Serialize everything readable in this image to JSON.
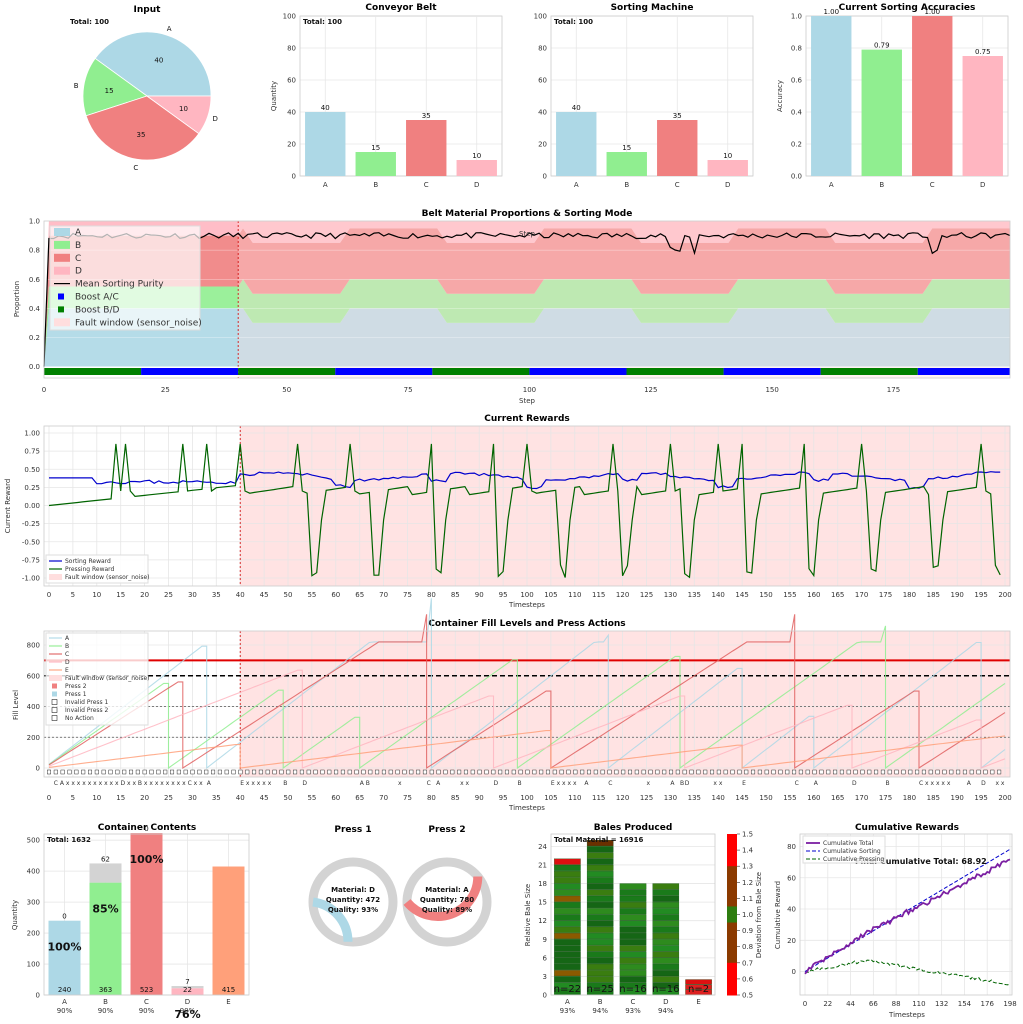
{
  "colors": {
    "A": "#add8e6",
    "B": "#90ee90",
    "C": "#f08080",
    "D": "#ffb6c1",
    "E": "#ffa07a",
    "fault": "#ffdede",
    "purity": "#000000",
    "boostAC": "#0000ff",
    "boostBD": "#008000",
    "sortReward": "#0000cd",
    "pressReward": "#006400",
    "limitRed": "#e00000"
  },
  "panels": {
    "input": {
      "title": "Input",
      "total": "Total: 100"
    },
    "conveyor": {
      "title": "Conveyor Belt",
      "total": "Total: 100",
      "ylabel": "Quantity"
    },
    "sorting": {
      "title": "Sorting Machine",
      "total": "Total: 100"
    },
    "accuracy": {
      "title": "Current Sorting Accuracies",
      "ylabel": "Accuracy"
    },
    "belt": {
      "title": "Belt Material Proportions & Sorting Mode",
      "ylabel": "Proportion",
      "xlabel": "Step",
      "top_xlabel": "Step"
    },
    "rewards": {
      "title": "Current Rewards",
      "ylabel": "Current Reward",
      "xlabel": "Timesteps"
    },
    "fill": {
      "title": "Container Fill Levels and Press Actions",
      "ylabel": "Fill Level",
      "xlabel": "Timesteps"
    },
    "contents": {
      "title": "Container Contents",
      "total": "Total: 1632",
      "ylabel": "Quantity"
    },
    "press": {
      "press1_title": "Press 1",
      "press2_title": "Press 2"
    },
    "bales": {
      "title": "Bales Produced",
      "total": "Total Material = 16916",
      "ylabel": "Relative Bale Size",
      "cbar_label": "Deviation from Bale Size"
    },
    "cumulative": {
      "title": "Cumulative Rewards",
      "xlabel": "Timesteps",
      "ylabel": "Cumulative Reward",
      "overlay": "Final Cumulative Total: 68.92"
    }
  },
  "chart_data": [
    {
      "id": "input",
      "type": "pie",
      "title": "Input",
      "labels": [
        "A",
        "B",
        "C",
        "D"
      ],
      "values": [
        40,
        15,
        35,
        10
      ]
    },
    {
      "id": "conveyor",
      "type": "bar",
      "title": "Conveyor Belt",
      "categories": [
        "A",
        "B",
        "C",
        "D"
      ],
      "values": [
        40,
        15,
        35,
        10
      ],
      "ylim": [
        0,
        100
      ],
      "yticks": [
        0,
        20,
        40,
        60,
        80,
        100
      ],
      "ylabel": "Quantity"
    },
    {
      "id": "sorting",
      "type": "bar",
      "title": "Sorting Machine",
      "categories": [
        "A",
        "B",
        "C",
        "D"
      ],
      "values": [
        40,
        15,
        35,
        10
      ],
      "ylim": [
        0,
        100
      ],
      "yticks": [
        0,
        20,
        40,
        60,
        80,
        100
      ]
    },
    {
      "id": "accuracy",
      "type": "bar",
      "title": "Current Sorting Accuracies",
      "categories": [
        "A",
        "B",
        "C",
        "D"
      ],
      "values": [
        1.0,
        0.79,
        1.0,
        0.75
      ],
      "value_labels": [
        "1.00",
        "0.79",
        "1.00",
        "0.75"
      ],
      "ylim": [
        0,
        1.0
      ],
      "yticks": [
        "0.0",
        "0.2",
        "0.4",
        "0.6",
        "0.8",
        "1.0"
      ],
      "ylabel": "Accuracy"
    },
    {
      "id": "belt",
      "type": "area",
      "title": "Belt Material Proportions & Sorting Mode",
      "xlim": [
        0,
        199
      ],
      "xticks": [
        0,
        25,
        50,
        75,
        100,
        125,
        150,
        175
      ],
      "yticks": [
        "0.0",
        "0.2",
        "0.4",
        "0.6",
        "0.8",
        "1.0"
      ],
      "legend": [
        "A",
        "B",
        "C",
        "D",
        "Mean Sorting Purity",
        "Boost A/C",
        "Boost B/D",
        "Fault window (sensor_noise)"
      ],
      "fault_start": 40,
      "phases": [
        {
          "from": 1,
          "to": 40,
          "A": 0.4,
          "B": 0.15,
          "C": 0.35,
          "D": 0.1
        },
        {
          "from": 41,
          "to": 199,
          "cycle": "alternating",
          "lowA": 0.3,
          "highA": 0.4,
          "period": 20
        }
      ],
      "purity_mean": 0.9,
      "mode_segments": [
        {
          "from": 0,
          "to": 20,
          "mode": "B/D"
        },
        {
          "from": 20,
          "to": 40,
          "mode": "A/C"
        },
        {
          "from": 40,
          "to": 60,
          "mode": "B/D"
        },
        {
          "from": 60,
          "to": 80,
          "mode": "A/C"
        },
        {
          "from": 80,
          "to": 100,
          "mode": "B/D"
        },
        {
          "from": 100,
          "to": 120,
          "mode": "A/C"
        },
        {
          "from": 120,
          "to": 140,
          "mode": "B/D"
        },
        {
          "from": 140,
          "to": 160,
          "mode": "A/C"
        },
        {
          "from": 160,
          "to": 180,
          "mode": "B/D"
        },
        {
          "from": 180,
          "to": 199,
          "mode": "A/C"
        }
      ]
    },
    {
      "id": "rewards",
      "type": "line",
      "title": "Current Rewards",
      "xlim": [
        0,
        200
      ],
      "ylim": [
        -1.1,
        1.1
      ],
      "xticks": [
        0,
        5,
        10,
        15,
        20,
        25,
        30,
        35,
        40,
        45,
        50,
        55,
        60,
        65,
        70,
        75,
        80,
        85,
        90,
        95,
        100,
        105,
        110,
        115,
        120,
        125,
        130,
        135,
        140,
        145,
        150,
        155,
        160,
        165,
        170,
        175,
        180,
        185,
        190,
        195,
        200
      ],
      "yticks": [
        "1.00",
        "0.75",
        "0.50",
        "0.25",
        "0.00",
        "-0.25",
        "-0.50",
        "-0.75",
        "-1.00"
      ],
      "series": [
        {
          "name": "Sorting Reward"
        },
        {
          "name": "Pressing Reward"
        }
      ],
      "fault_label": "Fault window (sensor_noise)",
      "fault_start": 40,
      "press_spikes": [
        14,
        16,
        28,
        33,
        40,
        52,
        63,
        80,
        93,
        100,
        118,
        130,
        140,
        145,
        158,
        170,
        185,
        195
      ]
    },
    {
      "id": "fill",
      "type": "line",
      "title": "Container Fill Levels and Press Actions",
      "xlim": [
        0,
        200
      ],
      "ylim": [
        0,
        850
      ],
      "yticks": [
        0,
        200,
        400,
        600,
        800
      ],
      "limit_red": 700,
      "limit_black": 600,
      "legend": [
        "A",
        "B",
        "C",
        "D",
        "E",
        "Fault window (sensor_noise)",
        "Press 2",
        "Press 1",
        "Invalid Press 1",
        "Invalid Press 2",
        "No Action"
      ],
      "action_labels": [
        {
          "x": 1,
          "t": "C A x x x x x x x x x x D x x B x x x x x x x x C x x"
        },
        {
          "x": 33,
          "t": "A"
        },
        {
          "x": 40,
          "t": "E x x x x x"
        },
        {
          "x": 49,
          "t": "B"
        },
        {
          "x": 53,
          "t": "D"
        },
        {
          "x": 65,
          "t": "A B"
        },
        {
          "x": 73,
          "t": "x"
        },
        {
          "x": 79,
          "t": "C"
        },
        {
          "x": 81,
          "t": "A"
        },
        {
          "x": 86,
          "t": "x x"
        },
        {
          "x": 93,
          "t": "D"
        },
        {
          "x": 98,
          "t": "B"
        },
        {
          "x": 105,
          "t": "E x x x x"
        },
        {
          "x": 112,
          "t": "A"
        },
        {
          "x": 117,
          "t": "C"
        },
        {
          "x": 125,
          "t": "x"
        },
        {
          "x": 130,
          "t": "A"
        },
        {
          "x": 132,
          "t": "B"
        },
        {
          "x": 133,
          "t": "D"
        },
        {
          "x": 139,
          "t": "x x"
        },
        {
          "x": 145,
          "t": "E"
        },
        {
          "x": 156,
          "t": "C"
        },
        {
          "x": 160,
          "t": "A"
        },
        {
          "x": 168,
          "t": "D"
        },
        {
          "x": 175,
          "t": "B"
        },
        {
          "x": 182,
          "t": "C x x x x x"
        },
        {
          "x": 192,
          "t": "A"
        },
        {
          "x": 195,
          "t": "D"
        },
        {
          "x": 198,
          "t": "x x"
        }
      ]
    },
    {
      "id": "contents",
      "type": "bar",
      "title": "Container Contents",
      "categories": [
        "A",
        "B",
        "C",
        "D",
        "E"
      ],
      "sub_labels": [
        "90%",
        "90%",
        "90%",
        "90%",
        ""
      ],
      "values": [
        240,
        363,
        523,
        22,
        415
      ],
      "impurities": [
        0,
        62,
        0,
        7,
        0
      ],
      "pct_labels": [
        "100%",
        "85%",
        "100%",
        "76%",
        ""
      ],
      "ylim": [
        0,
        520
      ],
      "yticks": [
        0,
        100,
        200,
        300,
        400,
        500
      ],
      "ylabel": "Quantity"
    },
    {
      "id": "press",
      "type": "pie",
      "panels": [
        {
          "title": "Press 1",
          "material": "Material: D",
          "quantity": "Quantity: 472",
          "quality": "Quality: 93%",
          "fill": 0.23
        },
        {
          "title": "Press 2",
          "material": "Material: A",
          "quantity": "Quantity: 780",
          "quality": "Quality: 89%",
          "fill": 0.39
        }
      ]
    },
    {
      "id": "bales",
      "type": "bar",
      "title": "Bales Produced",
      "categories": [
        "A",
        "B",
        "C",
        "D",
        "E"
      ],
      "sub_labels": [
        "93%",
        "94%",
        "93%",
        "94%",
        ""
      ],
      "counts": [
        "n=22",
        "n=25",
        "n=16",
        "n=16",
        "n=2"
      ],
      "heights": [
        22,
        25,
        18,
        18,
        2.5
      ],
      "ylim": [
        0,
        26
      ],
      "yticks": [
        0,
        3,
        6,
        9,
        12,
        15,
        18,
        21,
        24
      ],
      "cbar_ticks": [
        "1.5",
        "1.4",
        "1.3",
        "1.2",
        "1.1",
        "1.0",
        "0.9",
        "0.8",
        "0.7",
        "0.6",
        "0.5"
      ],
      "cbar_label": "Deviation from Bale Size"
    },
    {
      "id": "cumulative",
      "type": "line",
      "title": "Cumulative Rewards",
      "xlim": [
        0,
        198
      ],
      "ylim": [
        -15,
        88
      ],
      "xticks": [
        "0",
        "22",
        "44",
        "66",
        "88",
        "110",
        "132",
        "154",
        "176",
        "198"
      ],
      "yticks": [
        "80",
        "60",
        "40",
        "20",
        "0"
      ],
      "series": [
        {
          "name": "Cumulative Total",
          "end": 68.92
        },
        {
          "name": "Cumulative Sorting",
          "end": 78
        },
        {
          "name": "Cumulative Pressing",
          "end": -9
        }
      ],
      "overlay": "Final Cumulative Total: 68.92"
    }
  ]
}
